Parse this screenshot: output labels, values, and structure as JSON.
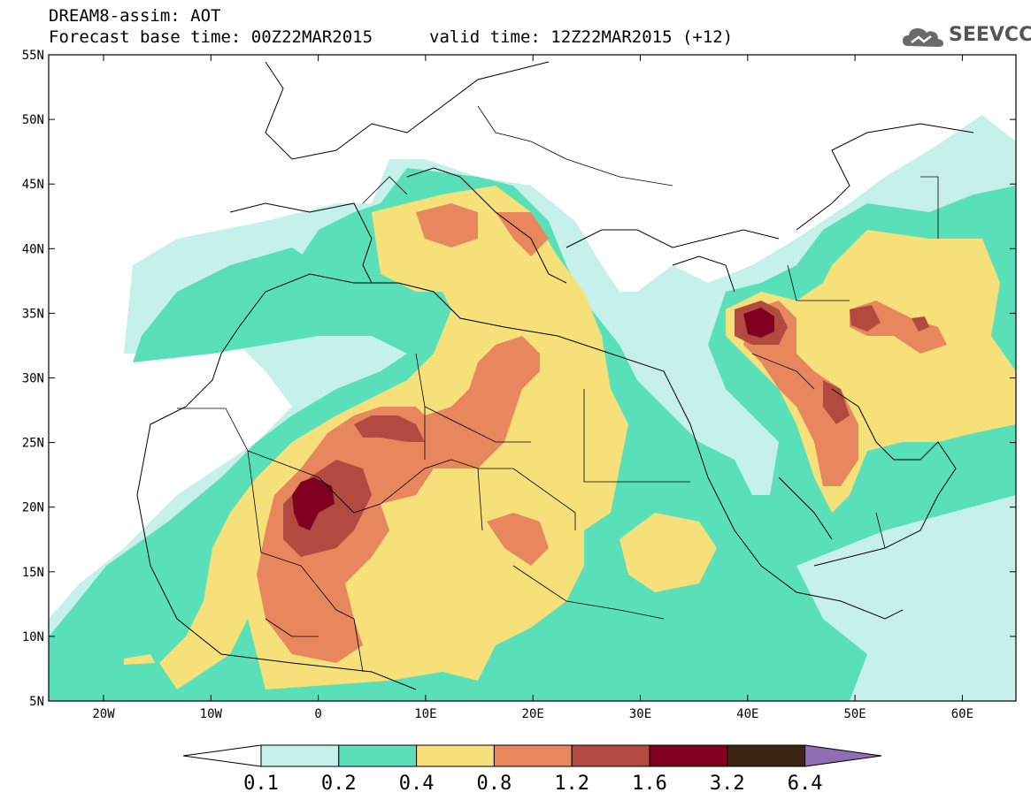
{
  "header": {
    "line1": "DREAM8-assim: AOT",
    "line2": "Forecast base time: 00Z22MAR2015",
    "line2b": "valid time: 12Z22MAR2015 (+12)"
  },
  "logo": {
    "text": "SEEVCCC",
    "icon": "cloud-icon"
  },
  "map": {
    "lat_labels": [
      "55N",
      "50N",
      "45N",
      "40N",
      "35N",
      "30N",
      "25N",
      "20N",
      "15N",
      "10N",
      "5N"
    ],
    "lon_labels": [
      "20W",
      "10W",
      "0",
      "10E",
      "20E",
      "30E",
      "40E",
      "50E",
      "60E"
    ]
  },
  "colorbar": {
    "labels": [
      "0.1",
      "0.2",
      "0.4",
      "0.8",
      "1.2",
      "1.6",
      "3.2",
      "6.4"
    ],
    "colors": [
      "#c6f1ea",
      "#5ae0b8",
      "#f5e07a",
      "#e8875e",
      "#b24a3f",
      "#800020",
      "#3b2414"
    ],
    "over_color": "#8e6fb3",
    "under_color": "#ffffff"
  }
}
